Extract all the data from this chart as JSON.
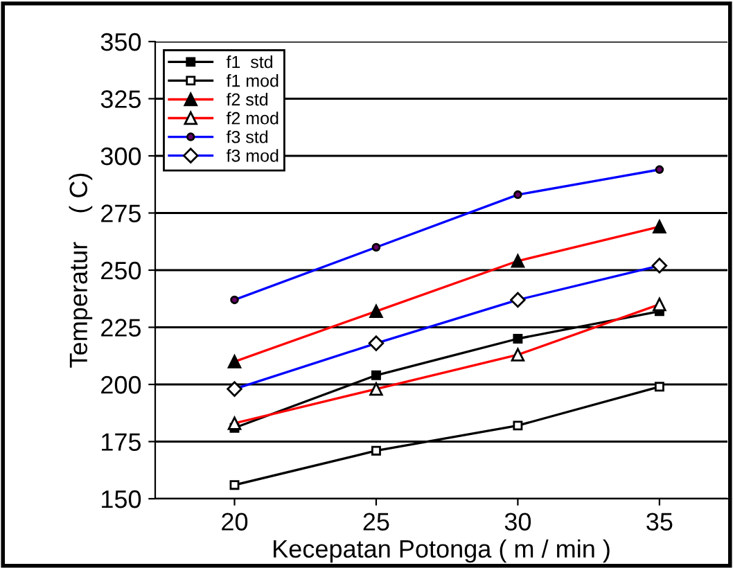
{
  "chart_data": {
    "type": "line",
    "xlabel": "Kecepatan Potonga ( m / min )",
    "ylabel": "Temperatur    ( C)",
    "x": [
      20,
      25,
      30,
      35
    ],
    "xlim": [
      17.2,
      37.4
    ],
    "xticks": [
      20,
      25,
      30,
      35
    ],
    "ylim": [
      150,
      350
    ],
    "yticks": [
      150,
      175,
      200,
      225,
      250,
      275,
      300,
      325,
      350
    ],
    "grid": "y",
    "legend": "top left",
    "series": [
      {
        "name": "f1  std",
        "color": "#000000",
        "marker": "square_filled",
        "values": [
          181,
          204,
          220,
          232
        ]
      },
      {
        "name": "f1 mod",
        "color": "#000000",
        "marker": "square_open",
        "values": [
          156,
          171,
          182,
          199
        ]
      },
      {
        "name": "f2 std",
        "color": "#ff0000",
        "marker": "triangle_filled",
        "values": [
          210,
          232,
          254,
          269
        ]
      },
      {
        "name": "f2 mod",
        "color": "#ff0000",
        "marker": "triangle_open",
        "values": [
          183,
          198,
          213,
          235
        ]
      },
      {
        "name": "f3 std",
        "color": "#0000ff",
        "marker": "circle_filled",
        "values": [
          237,
          260,
          283,
          294
        ]
      },
      {
        "name": "f3 mod",
        "color": "#0000ff",
        "marker": "diamond_open",
        "values": [
          198,
          218,
          237,
          252
        ]
      }
    ]
  }
}
